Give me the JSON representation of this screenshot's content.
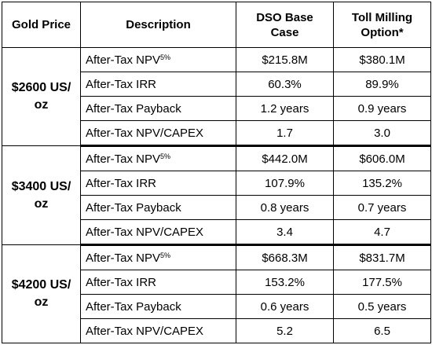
{
  "headers": {
    "gold_price": "Gold Price",
    "description": "Description",
    "dso": "DSO Base Case",
    "toll": "Toll Milling Option*"
  },
  "groups": [
    {
      "price": "$2600 US/ oz",
      "rows": [
        {
          "desc": "After-Tax NPV",
          "sup": "5%",
          "dso": "$215.8M",
          "toll": "$380.1M"
        },
        {
          "desc": "After-Tax IRR",
          "sup": "",
          "dso": "60.3%",
          "toll": "89.9%"
        },
        {
          "desc": "After-Tax Payback",
          "sup": "",
          "dso": "1.2 years",
          "toll": "0.9 years"
        },
        {
          "desc": "After-Tax NPV/CAPEX",
          "sup": "",
          "dso": "1.7",
          "toll": "3.0"
        }
      ]
    },
    {
      "price": "$3400 US/ oz",
      "rows": [
        {
          "desc": "After-Tax NPV",
          "sup": "5%",
          "dso": "$442.0M",
          "toll": "$606.0M"
        },
        {
          "desc": "After-Tax IRR",
          "sup": "",
          "dso": "107.9%",
          "toll": "135.2%"
        },
        {
          "desc": "After-Tax Payback",
          "sup": "",
          "dso": "0.8 years",
          "toll": "0.7 years"
        },
        {
          "desc": "After-Tax NPV/CAPEX",
          "sup": "",
          "dso": "3.4",
          "toll": "4.7"
        }
      ]
    },
    {
      "price": "$4200 US/ oz",
      "rows": [
        {
          "desc": "After-Tax NPV",
          "sup": "5%",
          "dso": "$668.3M",
          "toll": "$831.7M"
        },
        {
          "desc": "After-Tax IRR",
          "sup": "",
          "dso": "153.2%",
          "toll": "177.5%"
        },
        {
          "desc": "After-Tax Payback",
          "sup": "",
          "dso": "0.6 years",
          "toll": "0.5 years"
        },
        {
          "desc": "After-Tax NPV/CAPEX",
          "sup": "",
          "dso": "5.2",
          "toll": "6.5"
        }
      ]
    }
  ]
}
